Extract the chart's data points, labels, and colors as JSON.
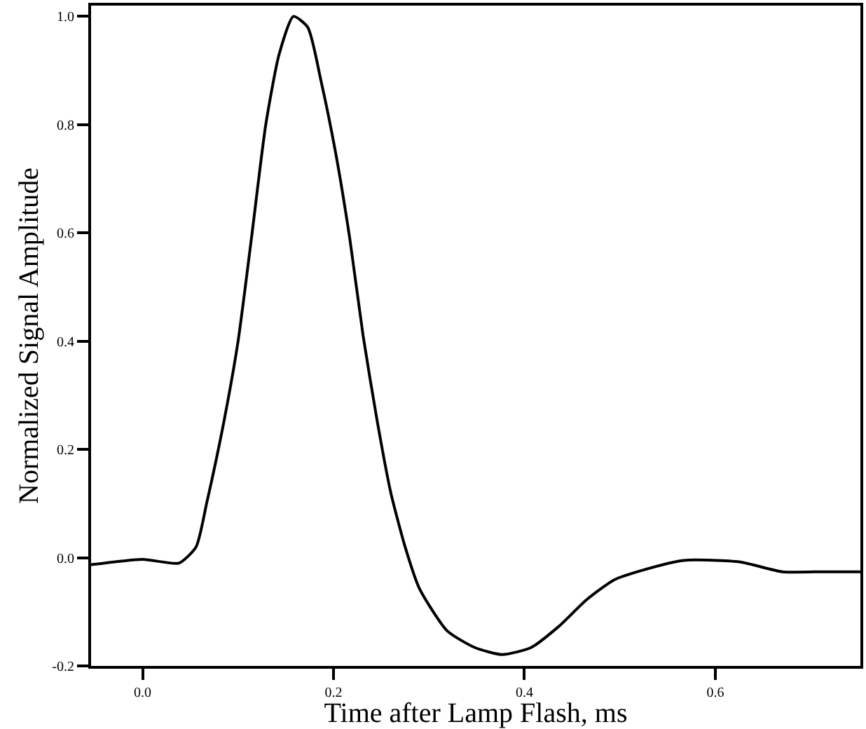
{
  "chart_data": {
    "type": "line",
    "xlabel": "Time after Lamp Flash, ms",
    "ylabel": "Normalized Signal Amplitude",
    "color": "#000000",
    "marker": "none",
    "line_style": "solid",
    "grid": false,
    "legend": false,
    "x": [
      -0.054,
      0.0,
      0.038,
      0.056,
      0.067,
      0.085,
      0.1,
      0.114,
      0.129,
      0.143,
      0.158,
      0.173,
      0.187,
      0.202,
      0.217,
      0.231,
      0.246,
      0.26,
      0.275,
      0.29,
      0.319,
      0.348,
      0.377,
      0.407,
      0.436,
      0.465,
      0.494,
      0.524,
      0.567,
      0.626,
      0.67,
      0.714,
      0.752
    ],
    "values": [
      -0.013,
      -0.003,
      -0.01,
      0.02,
      0.1,
      0.25,
      0.4,
      0.59,
      0.8,
      0.93,
      1.0,
      0.98,
      0.88,
      0.75,
      0.59,
      0.41,
      0.25,
      0.12,
      0.02,
      -0.057,
      -0.135,
      -0.166,
      -0.179,
      -0.166,
      -0.127,
      -0.078,
      -0.041,
      -0.023,
      -0.005,
      -0.008,
      -0.026,
      -0.026,
      -0.026
    ],
    "xlim": [
      -0.054,
      0.752
    ],
    "ylim": [
      -0.2,
      1.02
    ],
    "xticks": [
      {
        "value": 0,
        "label": "0.0"
      },
      0.2,
      0.4,
      0.6
    ],
    "yticks": [
      -0.2,
      {
        "value": 0,
        "label": "0.0"
      },
      0.2,
      0.4,
      0.6,
      0.8,
      {
        "value": 1,
        "label": "1.0"
      }
    ]
  }
}
